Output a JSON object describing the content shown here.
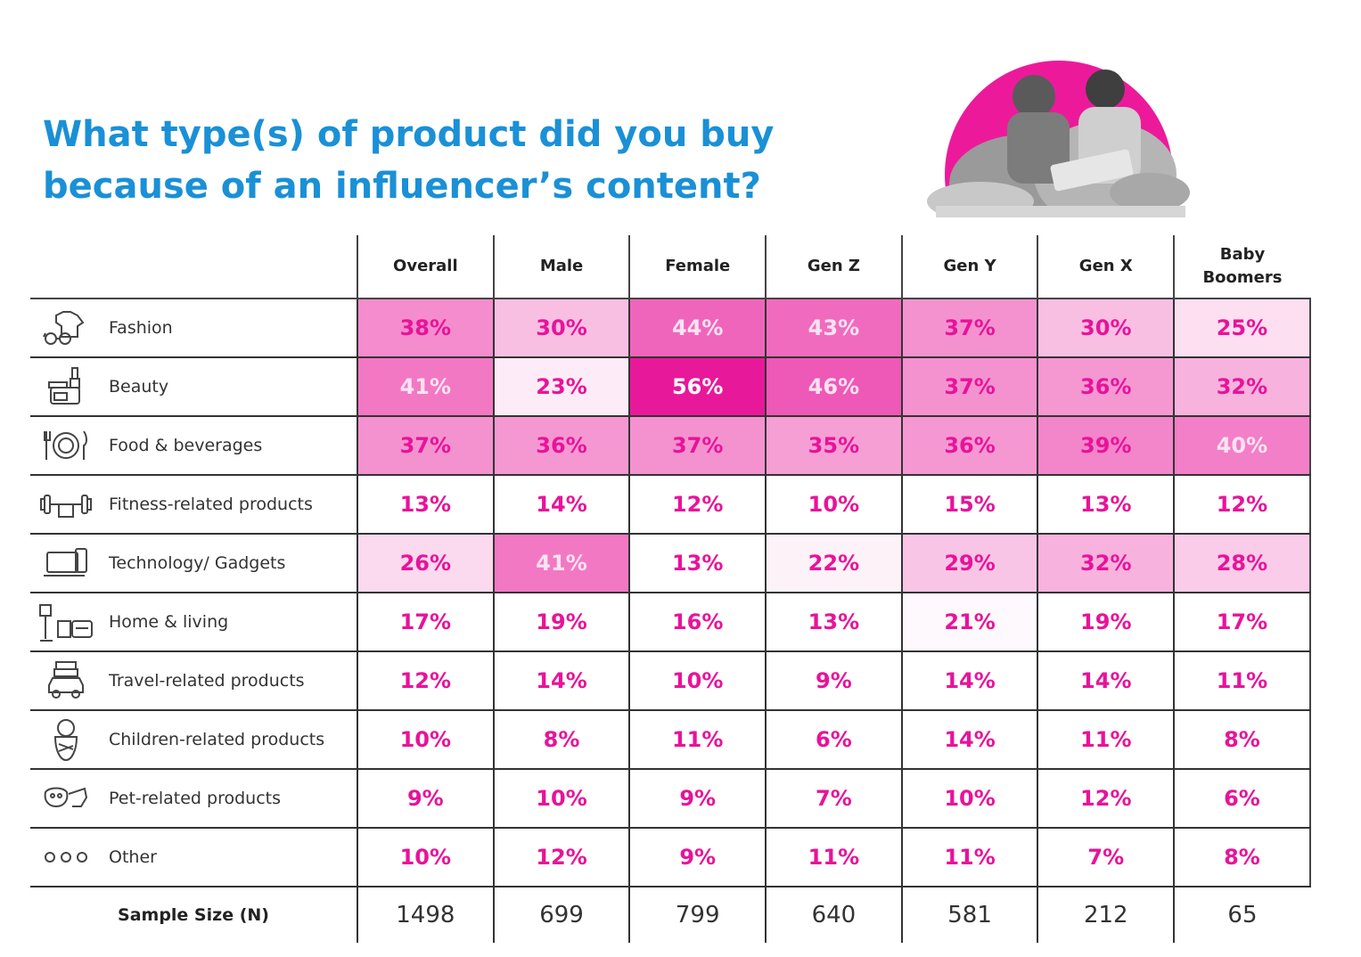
{
  "title": "What type(s) of product did you buy because of an influencer’s content?",
  "columns": [
    "Overall",
    "Male",
    "Female",
    "Gen Z",
    "Gen Y",
    "Gen X",
    "Baby Boomers"
  ],
  "rows": [
    {
      "label": "Fashion",
      "icon": "tshirt-glasses-icon",
      "values": [
        "38%",
        "30%",
        "44%",
        "43%",
        "37%",
        "30%",
        "25%"
      ]
    },
    {
      "label": "Beauty",
      "icon": "cosmetics-icon",
      "values": [
        "41%",
        "23%",
        "56%",
        "46%",
        "37%",
        "36%",
        "32%"
      ]
    },
    {
      "label": "Food & beverages",
      "icon": "plate-cutlery-icon",
      "values": [
        "37%",
        "36%",
        "37%",
        "35%",
        "36%",
        "39%",
        "40%"
      ]
    },
    {
      "label": "Fitness-related products",
      "icon": "dumbbell-icon",
      "values": [
        "13%",
        "14%",
        "12%",
        "10%",
        "15%",
        "13%",
        "12%"
      ]
    },
    {
      "label": "Technology/ Gadgets",
      "icon": "laptop-phone-icon",
      "values": [
        "26%",
        "41%",
        "13%",
        "22%",
        "29%",
        "32%",
        "28%"
      ]
    },
    {
      "label": "Home & living",
      "icon": "lamp-sofa-icon",
      "values": [
        "17%",
        "19%",
        "16%",
        "13%",
        "21%",
        "19%",
        "17%"
      ]
    },
    {
      "label": "Travel-related products",
      "icon": "car-luggage-icon",
      "values": [
        "12%",
        "14%",
        "10%",
        "9%",
        "14%",
        "14%",
        "11%"
      ]
    },
    {
      "label": "Children-related products",
      "icon": "baby-icon",
      "values": [
        "10%",
        "8%",
        "11%",
        "6%",
        "14%",
        "11%",
        "8%"
      ]
    },
    {
      "label": "Pet-related products",
      "icon": "pet-icon",
      "values": [
        "9%",
        "10%",
        "9%",
        "7%",
        "10%",
        "12%",
        "6%"
      ]
    },
    {
      "label": "Other",
      "icon": "ellipsis-icon",
      "values": [
        "10%",
        "12%",
        "9%",
        "11%",
        "11%",
        "7%",
        "8%"
      ]
    }
  ],
  "sample": {
    "label": "Sample Size (N)",
    "values": [
      "1498",
      "699",
      "799",
      "640",
      "581",
      "212",
      "65"
    ]
  },
  "colors": {
    "title": "#1a90d6",
    "value_text": "#e8139a",
    "heat_max": "#e8189a",
    "photo_circle": "#ec1a9b"
  },
  "chart_data": {
    "type": "table",
    "title": "What type(s) of product did you buy because of an influencer’s content?",
    "columns": [
      "Overall",
      "Male",
      "Female",
      "Gen Z",
      "Gen Y",
      "Gen X",
      "Baby Boomers"
    ],
    "categories": [
      "Fashion",
      "Beauty",
      "Food & beverages",
      "Fitness-related products",
      "Technology/ Gadgets",
      "Home & living",
      "Travel-related products",
      "Children-related products",
      "Pet-related products",
      "Other"
    ],
    "values": [
      [
        38,
        30,
        44,
        43,
        37,
        30,
        25
      ],
      [
        41,
        23,
        56,
        46,
        37,
        36,
        32
      ],
      [
        37,
        36,
        37,
        35,
        36,
        39,
        40
      ],
      [
        13,
        14,
        12,
        10,
        15,
        13,
        12
      ],
      [
        26,
        41,
        13,
        22,
        29,
        32,
        28
      ],
      [
        17,
        19,
        16,
        13,
        21,
        19,
        17
      ],
      [
        12,
        14,
        10,
        9,
        14,
        14,
        11
      ],
      [
        10,
        8,
        11,
        6,
        14,
        11,
        8
      ],
      [
        9,
        10,
        9,
        7,
        10,
        12,
        6
      ],
      [
        10,
        12,
        9,
        11,
        11,
        7,
        8
      ]
    ],
    "sample_size": [
      1498,
      699,
      799,
      640,
      581,
      212,
      65
    ]
  }
}
